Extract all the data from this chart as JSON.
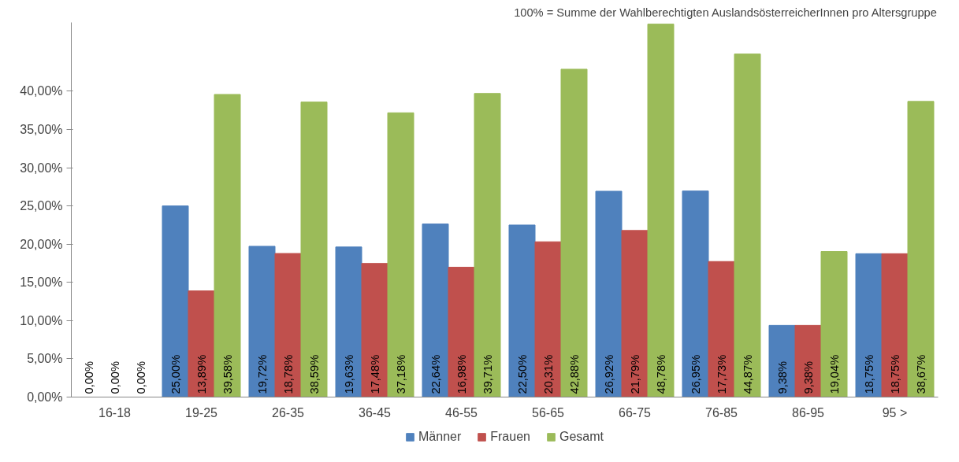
{
  "chart_data": {
    "type": "bar",
    "annotations": [
      "100% = Summe der Wahlberechtigten AuslandsösterreicherInnen pro Altersgruppe"
    ],
    "categories": [
      "16-18",
      "19-25",
      "26-35",
      "36-45",
      "46-55",
      "56-65",
      "66-75",
      "76-85",
      "86-95",
      "95 >"
    ],
    "series": [
      {
        "name": "Männer",
        "color": "#4f81bd",
        "values": [
          0,
          25.0,
          19.72,
          19.63,
          22.64,
          22.5,
          26.92,
          26.95,
          9.38,
          18.75
        ],
        "value_labels": [
          "0,00%",
          "25,00%",
          "19,72%",
          "19,63%",
          "22,64%",
          "22,50%",
          "26,92%",
          "26,95%",
          "9,38%",
          "18,75%"
        ]
      },
      {
        "name": "Frauen",
        "color": "#c0504d",
        "values": [
          0,
          13.89,
          18.78,
          17.48,
          16.98,
          20.31,
          21.79,
          17.73,
          9.38,
          18.75
        ],
        "value_labels": [
          "0,00%",
          "13,89%",
          "18,78%",
          "17,48%",
          "16,98%",
          "20,31%",
          "21,79%",
          "17,73%",
          "9,38%",
          "18,75%"
        ]
      },
      {
        "name": "Gesamt",
        "color": "#9bbb59",
        "values": [
          0,
          39.58,
          38.59,
          37.18,
          39.71,
          42.88,
          48.78,
          44.87,
          19.04,
          38.67
        ],
        "value_labels": [
          "0,00%",
          "39,58%",
          "38,59%",
          "37,18%",
          "39,71%",
          "42,88%",
          "48,78%",
          "44,87%",
          "19,04%",
          "38,67%"
        ]
      }
    ],
    "ylim": [
      0,
      49
    ],
    "yticks": [
      {
        "value": 0,
        "label": "0,00%"
      },
      {
        "value": 5,
        "label": "5,00%"
      },
      {
        "value": 10,
        "label": "10,00%"
      },
      {
        "value": 15,
        "label": "15,00%"
      },
      {
        "value": 20,
        "label": "20,00%"
      },
      {
        "value": 25,
        "label": "25,00%"
      },
      {
        "value": 30,
        "label": "30,00%"
      },
      {
        "value": 35,
        "label": "35,00%"
      },
      {
        "value": 40,
        "label": "40,00%"
      }
    ],
    "grid": false,
    "legend": "bottom"
  }
}
